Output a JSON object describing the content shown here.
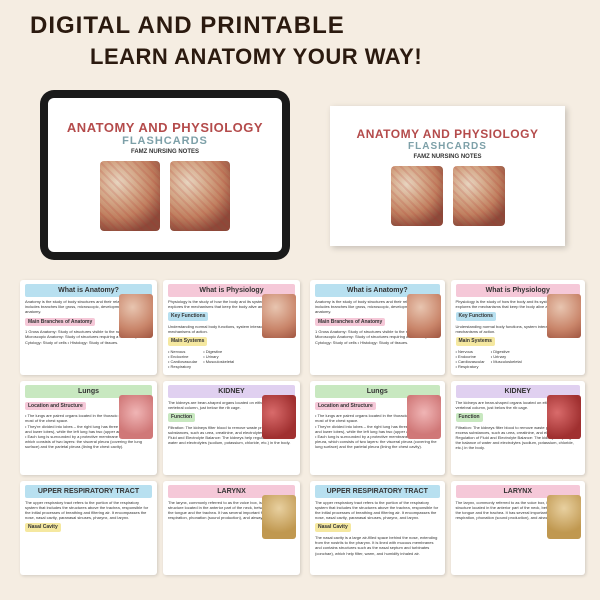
{
  "headline1": "DIGITAL AND PRINTABLE",
  "headline2": "LEARN ANATOMY YOUR WAY!",
  "cover": {
    "title": "ANATOMY AND PHYSIOLOGY",
    "subtitle": "FLASHCARDS",
    "brand": "FAMZ NURSING NOTES"
  },
  "colors": {
    "bg": "#f5ede2",
    "title_red": "#b44b4b",
    "sub_teal": "#7da0a8",
    "blue": "#b8e0f0",
    "pink": "#f5c8d8",
    "green": "#c8e8c0",
    "yellow": "#f5e8a0",
    "lilac": "#e0d0f0"
  },
  "cards": {
    "anatomy": {
      "head": "What is Anatomy?",
      "intro": "Anatomy is the study of body structures and their relationships. It includes branches like gross, microscopic, developmental, and clinical anatomy.",
      "section": "Main Branches of Anatomy",
      "body": "1 Gross Anatomy: Study of structures visible to the naked eye. 2 Microscopic Anatomy: Study of structures requiring a microscope. • Cytology: Study of cells • Histology: Study of tissues."
    },
    "physiology": {
      "head": "What is Physiology",
      "intro": "Physiology is the study of how the body and its systems function. It explores the mechanisms that keep the body alive and healthy.",
      "section1": "Key Functions",
      "body1": "Understanding normal body functions, system interactions, and mechanisms of action.",
      "section2": "Main Systems",
      "list_l": "• Nervous\n• Endocrine\n• Cardiovascular\n• Respiratory",
      "list_r": "• Digestive\n• Urinary\n• Musculoskeletal"
    },
    "lungs": {
      "head": "Lungs",
      "section": "Location and Structure",
      "body": "• The lungs are paired organs located in the thoracic cavity, occupying most of the chest space.\n• They're divided into lobes – the right lung has three (upper, middle, and lower lobes), while the left lung has two (upper and lower lobes).\n• Each lung is surrounded by a protective membrane called the pleura, which consists of two layers: the visceral pleura (covering the lung surface) and the parietal pleura (lining the chest cavity)."
    },
    "kidney": {
      "head": "KIDNEY",
      "intro": "The kidneys are bean-shaped organs located on either side of the vertebral column, just below the rib cage.",
      "section": "Function",
      "body": "Filtration: The kidneys filter blood to remove waste products and excess substances, such as urea, creatinine, and electrolytes.\nRegulation of Fluid and Electrolyte Balance: The kidneys help regulate the balance of water and electrolytes (sodium, potassium, chloride, etc.) in the body."
    },
    "upper_resp": {
      "head": "UPPER RESPIRATORY TRACT",
      "intro": "The upper respiratory tract refers to the portion of the respiratory system that includes the structures above the trachea, responsible for the initial processes of breathing and filtering air. It encompasses the nose, nasal cavity, paranasal sinuses, pharynx, and larynx.",
      "section": "Nasal Cavity",
      "body": "The nasal cavity is a large air-filled space behind the nose, extending from the nostrils to the pharynx. It is lined with mucous membranes and contains structures such as the nasal septum and turbinates (conchae), which help filter, warm, and humidify inhaled air."
    },
    "larynx": {
      "head": "LARYNX",
      "body": "The larynx, commonly referred to as the voice box, is a cartilaginous structure located in the anterior part of the neck, between the base of the tongue and the trachea. It has several important functions in respiration, phonation (sound production), and airway protection."
    }
  }
}
